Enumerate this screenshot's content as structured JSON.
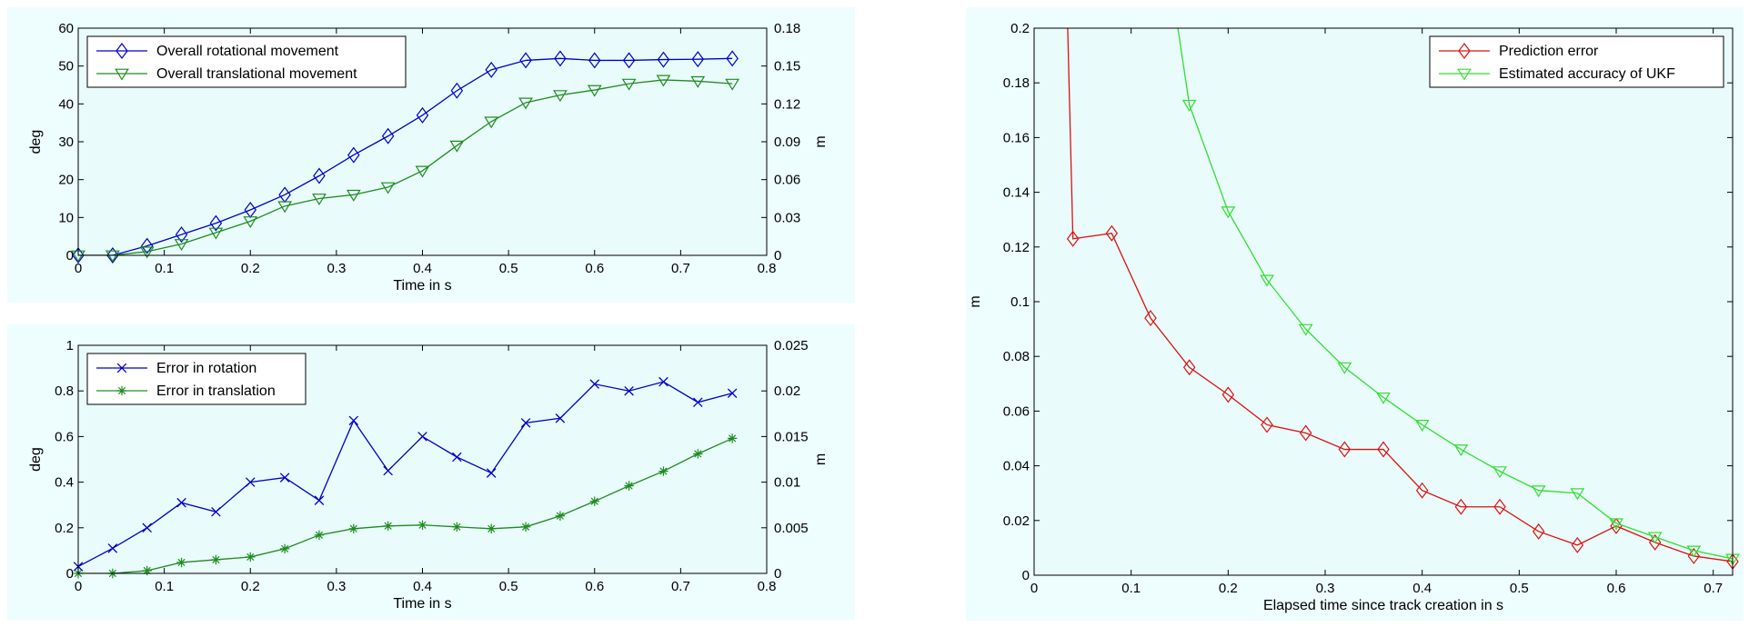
{
  "chart_data": [
    {
      "type": "line",
      "xlabel": "Time in s",
      "ylabel_left": "deg",
      "ylabel_right": "m",
      "xlim": [
        0,
        0.8
      ],
      "ylim_left": [
        0,
        60
      ],
      "ylim_right": [
        0,
        0.18
      ],
      "xticks": [
        "0",
        "0.1",
        "0.2",
        "0.3",
        "0.4",
        "0.5",
        "0.6",
        "0.7",
        "0.8"
      ],
      "yticks_left": [
        "0",
        "10",
        "20",
        "30",
        "40",
        "50",
        "60"
      ],
      "yticks_right": [
        "0",
        "0.03",
        "0.06",
        "0.09",
        "0.12",
        "0.15",
        "0.18"
      ],
      "legend_position": "top-left",
      "grid": false,
      "series": [
        {
          "name": "Overall rotational movement",
          "axis": "left",
          "color": "#0000cc",
          "marker": "diamond",
          "x": [
            0,
            0.04,
            0.08,
            0.12,
            0.16,
            0.2,
            0.24,
            0.28,
            0.32,
            0.36,
            0.4,
            0.44,
            0.48,
            0.52,
            0.56,
            0.6,
            0.64,
            0.68,
            0.72,
            0.76
          ],
          "y": [
            0,
            0,
            2.5,
            5.5,
            8.5,
            12,
            16,
            21,
            26.5,
            31.5,
            37,
            43.5,
            49,
            51.5,
            52,
            51.5,
            51.5,
            51.7,
            51.8,
            52
          ]
        },
        {
          "name": "Overall translational movement",
          "axis": "right",
          "color": "#1e8c1e",
          "marker": "triangle-down",
          "x": [
            0,
            0.04,
            0.08,
            0.12,
            0.16,
            0.2,
            0.24,
            0.28,
            0.32,
            0.36,
            0.4,
            0.44,
            0.48,
            0.52,
            0.56,
            0.6,
            0.64,
            0.68,
            0.72,
            0.76
          ],
          "y": [
            0,
            0,
            0.003,
            0.009,
            0.018,
            0.027,
            0.039,
            0.045,
            0.048,
            0.054,
            0.067,
            0.087,
            0.106,
            0.121,
            0.127,
            0.131,
            0.136,
            0.139,
            0.138,
            0.136
          ]
        }
      ]
    },
    {
      "type": "line",
      "xlabel": "Time in s",
      "ylabel_left": "deg",
      "ylabel_right": "m",
      "xlim": [
        0,
        0.8
      ],
      "ylim_left": [
        0,
        1
      ],
      "ylim_right": [
        0,
        0.025
      ],
      "xticks": [
        "0",
        "0.1",
        "0.2",
        "0.3",
        "0.4",
        "0.5",
        "0.6",
        "0.7",
        "0.8"
      ],
      "yticks_left": [
        "0",
        "0.2",
        "0.4",
        "0.6",
        "0.8",
        "1"
      ],
      "yticks_right": [
        "0",
        "0.005",
        "0.01",
        "0.015",
        "0.02",
        "0.025"
      ],
      "legend_position": "top-left",
      "grid": false,
      "series": [
        {
          "name": "Error in rotation",
          "axis": "left",
          "color": "#0000cc",
          "marker": "x",
          "x": [
            0,
            0.04,
            0.08,
            0.12,
            0.16,
            0.2,
            0.24,
            0.28,
            0.32,
            0.36,
            0.4,
            0.44,
            0.48,
            0.52,
            0.56,
            0.6,
            0.64,
            0.68,
            0.72,
            0.76
          ],
          "y": [
            0.03,
            0.11,
            0.2,
            0.31,
            0.27,
            0.4,
            0.42,
            0.32,
            0.67,
            0.45,
            0.6,
            0.51,
            0.44,
            0.66,
            0.68,
            0.83,
            0.8,
            0.84,
            0.75,
            0.79
          ]
        },
        {
          "name": "Error in translation",
          "axis": "right",
          "color": "#1e8c1e",
          "marker": "asterisk",
          "x": [
            0,
            0.04,
            0.08,
            0.12,
            0.16,
            0.2,
            0.24,
            0.28,
            0.32,
            0.36,
            0.4,
            0.44,
            0.48,
            0.52,
            0.56,
            0.6,
            0.64,
            0.68,
            0.72,
            0.76
          ],
          "y": [
            0,
            0,
            0.0003,
            0.0012,
            0.0015,
            0.0018,
            0.0027,
            0.0042,
            0.0049,
            0.0052,
            0.0053,
            0.0051,
            0.0049,
            0.0051,
            0.0063,
            0.0079,
            0.0096,
            0.0112,
            0.0131,
            0.0148
          ]
        }
      ]
    },
    {
      "type": "line",
      "xlabel": "Elapsed time since track creation in s",
      "ylabel": "m",
      "xlim": [
        0,
        0.72
      ],
      "ylim": [
        0,
        0.2
      ],
      "xticks": [
        "0",
        "0.1",
        "0.2",
        "0.3",
        "0.4",
        "0.5",
        "0.6",
        "0.7"
      ],
      "yticks": [
        "0",
        "0.02",
        "0.04",
        "0.06",
        "0.08",
        "0.1",
        "0.12",
        "0.14",
        "0.16",
        "0.18",
        "0.2"
      ],
      "legend_position": "top-right",
      "grid": false,
      "series": [
        {
          "name": "Prediction error",
          "color": "#dd1111",
          "marker": "diamond",
          "x": [
            0.0346,
            0.04,
            0.08,
            0.12,
            0.16,
            0.2,
            0.24,
            0.28,
            0.32,
            0.36,
            0.4,
            0.44,
            0.48,
            0.52,
            0.56,
            0.6,
            0.64,
            0.68,
            0.72
          ],
          "y": [
            0.2,
            0.123,
            0.125,
            0.094,
            0.076,
            0.066,
            0.055,
            0.052,
            0.046,
            0.046,
            0.031,
            0.025,
            0.025,
            0.016,
            0.011,
            0.018,
            0.012,
            0.007,
            0.005
          ]
        },
        {
          "name": "Estimated accuracy of UKF",
          "color": "#33dd33",
          "marker": "triangle-down",
          "x": [
            0.1482,
            0.16,
            0.2,
            0.24,
            0.28,
            0.32,
            0.36,
            0.4,
            0.44,
            0.48,
            0.52,
            0.56,
            0.6,
            0.64,
            0.68,
            0.72
          ],
          "y": [
            0.2,
            0.172,
            0.133,
            0.108,
            0.09,
            0.076,
            0.065,
            0.055,
            0.046,
            0.038,
            0.031,
            0.03,
            0.019,
            0.014,
            0.009,
            0.006
          ]
        }
      ]
    }
  ]
}
